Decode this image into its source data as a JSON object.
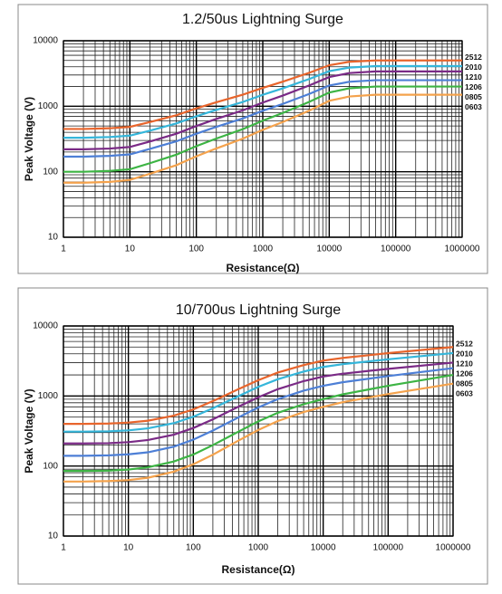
{
  "chart_data": [
    {
      "type": "line",
      "title": "1.2/50us Lightning Surge",
      "xlabel": "Resistance(Ω)",
      "ylabel": "Peak Voltage (V)",
      "log_x": true,
      "log_y": true,
      "grid": true,
      "xlim": [
        1,
        1000000
      ],
      "ylim": [
        10,
        10000
      ],
      "xticks": [
        1,
        10,
        100,
        1000,
        10000,
        100000,
        1000000
      ],
      "yticks": [
        10,
        100,
        1000,
        10000
      ],
      "x": [
        1,
        2,
        5,
        10,
        20,
        50,
        100,
        200,
        500,
        1000,
        2000,
        5000,
        10000,
        20000,
        50000,
        100000,
        1000000
      ],
      "series": [
        {
          "name": "2512",
          "color": "#e8652c",
          "values": [
            450,
            450,
            461,
            484,
            573,
            729,
            927,
            1152,
            1500,
            1908,
            2376,
            3240,
            4230,
            4770,
            5000,
            5000,
            5000
          ]
        },
        {
          "name": "2010",
          "color": "#35b6da",
          "values": [
            330,
            330,
            339,
            356,
            424,
            546,
            703,
            881,
            1162,
            1495,
            1878,
            2604,
            3432,
            3894,
            4100,
            4100,
            4100
          ]
        },
        {
          "name": "1210",
          "color": "#7a2a86",
          "values": [
            220,
            220,
            226,
            239,
            289,
            381,
            499,
            640,
            865,
            1140,
            1454,
            2079,
            2794,
            3212,
            3400,
            3400,
            3400
          ]
        },
        {
          "name": "1206",
          "color": "#4d7fd6",
          "values": [
            170,
            170,
            175,
            184,
            223,
            291,
            381,
            485,
            651,
            853,
            1086,
            1542,
            2074,
            2363,
            2500,
            2500,
            2500
          ]
        },
        {
          "name": "0805",
          "color": "#3db444",
          "values": [
            100,
            100,
            103,
            109,
            135,
            182,
            246,
            321,
            447,
            603,
            790,
            1165,
            1620,
            1880,
            2000,
            2000,
            2000
          ]
        },
        {
          "name": "0603",
          "color": "#f4a24c",
          "values": [
            68,
            68,
            70,
            75,
            93,
            126,
            172,
            227,
            320,
            436,
            575,
            857,
            1210,
            1408,
            1500,
            1500,
            1500
          ]
        }
      ]
    },
    {
      "type": "line",
      "title": "10/700us Lightning Surge",
      "xlabel": "Resistance(Ω)",
      "ylabel": "Peak Voltage (V)",
      "log_x": true,
      "log_y": true,
      "grid": true,
      "xlim": [
        1,
        1000000
      ],
      "ylim": [
        10,
        10000
      ],
      "xticks": [
        1,
        10,
        100,
        1000,
        10000,
        100000,
        1000000
      ],
      "yticks": [
        10,
        100,
        1000,
        10000
      ],
      "x": [
        1,
        2,
        5,
        10,
        20,
        50,
        100,
        200,
        500,
        1000,
        2000,
        5000,
        10000,
        20000,
        50000,
        100000,
        1000000
      ],
      "series": [
        {
          "name": "2512",
          "color": "#e8652c",
          "values": [
            400,
            400,
            404,
            417,
            444,
            524,
            644,
            844,
            1256,
            1680,
            2160,
            2760,
            3200,
            3498,
            3824,
            4090,
            5000
          ]
        },
        {
          "name": "2010",
          "color": "#35b6da",
          "values": [
            310,
            310,
            313,
            323,
            345,
            409,
            506,
            667,
            998,
            1349,
            1736,
            2232,
            2600,
            2847,
            3120,
            3341,
            4100
          ]
        },
        {
          "name": "1210",
          "color": "#7a2a86",
          "values": [
            210,
            210,
            212,
            219,
            235,
            280,
            349,
            464,
            706,
            960,
            1252,
            1632,
            1900,
            2081,
            2280,
            2442,
            3000
          ]
        },
        {
          "name": "1206",
          "color": "#4d7fd6",
          "values": [
            140,
            140,
            142,
            147,
            157,
            189,
            238,
            321,
            497,
            686,
            904,
            1191,
            1400,
            1572,
            1765,
            1926,
            2500
          ]
        },
        {
          "name": "0805",
          "color": "#3db444",
          "values": [
            85,
            85,
            86,
            89,
            96,
            116,
            146,
            199,
            311,
            434,
            575,
            764,
            900,
            1056,
            1239,
            1397,
            2000
          ]
        },
        {
          "name": "0603",
          "color": "#f4a24c",
          "values": [
            60,
            60,
            61,
            63,
            68,
            83,
            106,
            145,
            232,
            327,
            439,
            590,
            700,
            816,
            950,
            1065,
            1500
          ]
        }
      ]
    }
  ]
}
